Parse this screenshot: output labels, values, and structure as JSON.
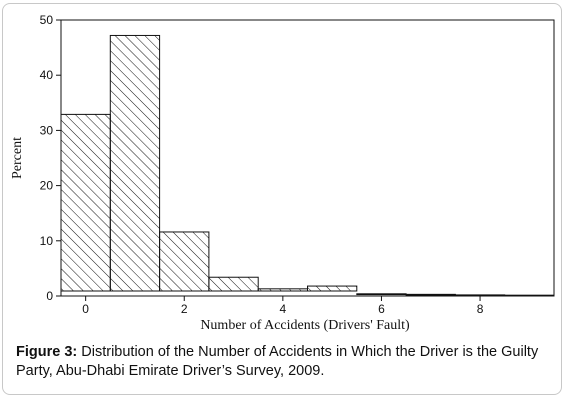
{
  "chart_data": {
    "type": "bar",
    "histogram": true,
    "xlabel": "Number of Accidents (Drivers' Fault)",
    "ylabel": "Percent",
    "x": [
      0,
      1,
      2,
      3,
      4,
      5,
      6,
      7,
      8,
      9
    ],
    "values": [
      32.9,
      47.2,
      11.6,
      3.4,
      1.3,
      1.8,
      0.4,
      0.3,
      0.2,
      0.15
    ],
    "ylim": [
      0,
      50
    ],
    "xlim": [
      -0.5,
      9.5
    ],
    "yticks": [
      0,
      10,
      20,
      30,
      40,
      50
    ],
    "xticks": [
      0,
      2,
      4,
      6,
      8
    ],
    "bar_fill": "diagonal-hatch",
    "grid": false
  },
  "caption": {
    "label": "Figure 3:",
    "text": " Distribution of the Number of Accidents in Which the Driver is the Guilty Party, Abu-Dhabi Emirate Driver’s Survey, 2009."
  }
}
